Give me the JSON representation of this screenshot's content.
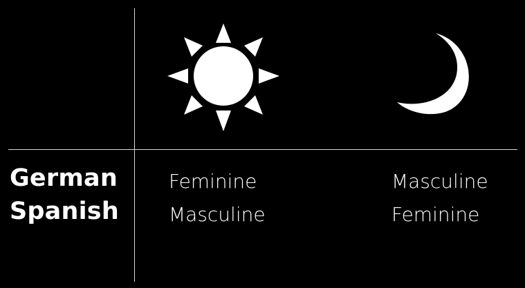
{
  "columns": [
    {
      "icon": "sun-icon"
    },
    {
      "icon": "crescent-moon-icon"
    }
  ],
  "rows": [
    {
      "language": "German",
      "sun": "Feminine",
      "moon": "Masculine"
    },
    {
      "language": "Spanish",
      "sun": "Masculine",
      "moon": "Feminine"
    }
  ],
  "colors": {
    "background": "#000000",
    "foreground": "#ffffff",
    "grid": "#d9d9d9"
  }
}
